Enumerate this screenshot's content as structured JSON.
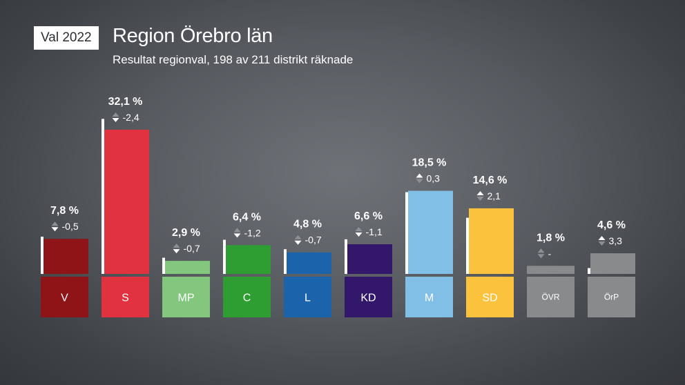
{
  "header": {
    "badge": "Val 2022",
    "title": "Region Örebro län",
    "subtitle": "Resultat regionval, 198 av 211 distrikt räknade"
  },
  "chart_data": {
    "type": "bar",
    "categories": [
      "V",
      "S",
      "MP",
      "C",
      "L",
      "KD",
      "M",
      "SD",
      "ÖVR",
      "ÖrP"
    ],
    "values": [
      7.8,
      32.1,
      2.9,
      6.4,
      4.8,
      6.6,
      18.5,
      14.6,
      1.8,
      4.6
    ],
    "value_labels": [
      "7,8 %",
      "32,1 %",
      "2,9 %",
      "6,4 %",
      "4,8 %",
      "6,6 %",
      "18,5 %",
      "14,6 %",
      "1,8 %",
      "4,6 %"
    ],
    "change": [
      -0.5,
      -2.4,
      -0.7,
      -1.2,
      -0.7,
      -1.1,
      0.3,
      2.1,
      null,
      3.3
    ],
    "change_labels": [
      "-0,5",
      "-2,4",
      "-0,7",
      "-1,2",
      "-0,7",
      "-1,1",
      "0,3",
      "2,1",
      "-",
      "3,3"
    ],
    "previous_values": [
      8.3,
      34.5,
      3.6,
      7.6,
      5.5,
      7.7,
      18.2,
      12.5,
      null,
      1.3
    ],
    "colors": [
      "#8e1417",
      "#e0323f",
      "#83c77e",
      "#2f9e32",
      "#1b64ab",
      "#33176b",
      "#82bfe6",
      "#fbc23e",
      "#888a8c",
      "#888a8c"
    ],
    "ylim": [
      0,
      32.1
    ]
  }
}
